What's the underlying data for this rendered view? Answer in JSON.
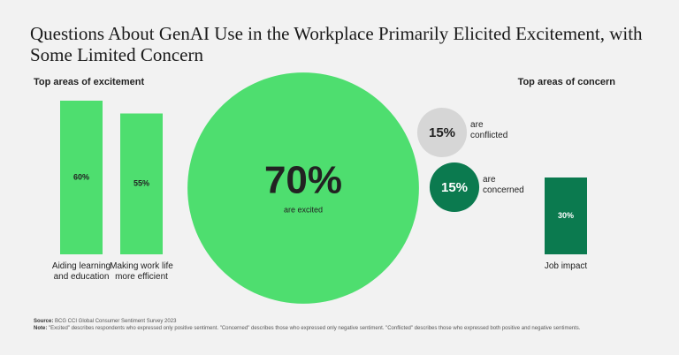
{
  "title": "Questions About GenAI Use in the Workplace Primarily Elicited Excitement, with Some Limited Concern",
  "chart_data": [
    {
      "type": "bar",
      "title": "Top areas of excitement",
      "categories": [
        "Aiding learning and education",
        "Making work life more efficient"
      ],
      "values": [
        60,
        55
      ],
      "value_labels": [
        "60%",
        "55%"
      ],
      "color": "#4ede6f"
    },
    {
      "type": "bubble",
      "categories": [
        "are excited",
        "are conflicted",
        "are concerned"
      ],
      "values": [
        70,
        15,
        15
      ],
      "value_labels": [
        "70%",
        "15%",
        "15%"
      ],
      "colors": [
        "#4ede6f",
        "#d6d6d6",
        "#0b7a4f"
      ]
    },
    {
      "type": "bar",
      "title": "Top areas of concern",
      "categories": [
        "Job impact"
      ],
      "values": [
        30
      ],
      "value_labels": [
        "30%"
      ],
      "color": "#0b7a4f"
    }
  ],
  "source_label": "Source:",
  "source": "BCG CCI Global Consumer Sentiment Survey 2023",
  "note_label": "Note:",
  "note": "\"Excited\" describes respondents who expressed only positive sentiment. \"Concerned\" describes those who expressed only negative sentiment. \"Conflicted\" describes those who expressed both positive and negative sentiments."
}
